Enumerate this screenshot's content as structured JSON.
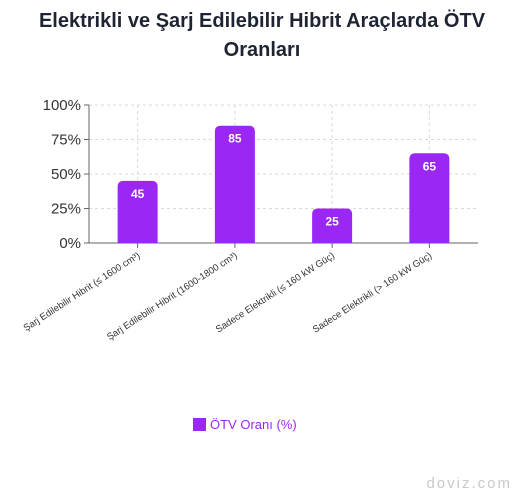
{
  "title_line1": "Elektrikli ve Şarj Edilebilir Hibrit Araçlarda ÖTV",
  "title_line2": "Oranları",
  "watermark": "doviz.com",
  "accent_color": "#9b27f5",
  "chart_data": {
    "type": "bar",
    "title": "Elektrikli ve Şarj Edilebilir Hibrit Araçlarda ÖTV Oranları",
    "categories": [
      "Şarj Edilebilir Hibrit (≤ 1600 cm³)",
      "Şarj Edilebilir Hibrit (1600-1800 cm³)",
      "Sadece Elektrikli (≤ 160 kW Güç)",
      "Sadece Elektrikli (> 160 kW Güç)"
    ],
    "series": [
      {
        "name": "ÖTV Oranı (%)",
        "values": [
          45,
          85,
          25,
          65
        ],
        "color": "#9b27f5"
      }
    ],
    "ylim": [
      0,
      100
    ],
    "yticks": [
      0,
      25,
      50,
      75,
      100
    ],
    "ytick_labels": [
      "0%",
      "25%",
      "50%",
      "75%",
      "100%"
    ],
    "data_labels": [
      "45",
      "85",
      "25",
      "65"
    ],
    "grid": true,
    "legend_position": "bottom"
  }
}
